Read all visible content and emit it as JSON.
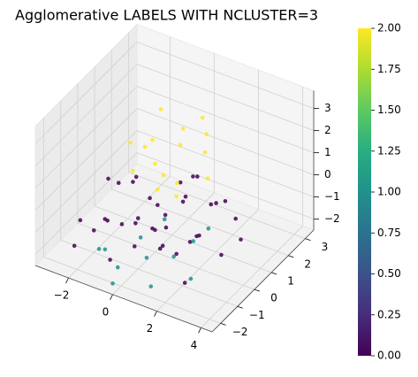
{
  "chart_data": {
    "type": "scatter3d",
    "title": "Agglomerative LABELS WITH NCLUSTER=3",
    "x": [
      -2,
      -1.5,
      -1,
      -0.5,
      0,
      0.5,
      1,
      1.5,
      2,
      2.5,
      -2.5,
      -1,
      0,
      0.5,
      1,
      -0.5,
      1.5,
      2,
      -1.5,
      0,
      3,
      -2,
      0.5,
      -1,
      1,
      -3,
      2.5,
      0,
      -0.5,
      1.2,
      -1.8,
      0.8,
      2.2,
      -0.3,
      1.8,
      3.5,
      -2.5,
      0.3,
      -1,
      0,
      1,
      2,
      1.5,
      0.5,
      2.5,
      -0.5,
      3,
      1.2,
      2.8,
      0,
      0,
      -0.5,
      0.5,
      1,
      -1,
      0,
      1.5,
      0.5,
      -0.5,
      1,
      0,
      2,
      -1.5,
      0.8,
      1.2,
      -0.3
    ],
    "y": [
      -1,
      0,
      1,
      -0.5,
      0,
      1,
      -1,
      0.5,
      0,
      -1.5,
      0.5,
      -1.5,
      1.5,
      -0.5,
      2,
      0.5,
      -1.5,
      1,
      -1,
      -1,
      0,
      1.5,
      0,
      0,
      0.5,
      -0.5,
      1.5,
      2.5,
      -2,
      -0.3,
      0.2,
      1.2,
      -0.8,
      1,
      1.8,
      0.5,
      -1.5,
      -1.6,
      -2,
      -2.2,
      -1.8,
      -1.5,
      -2.2,
      -1.5,
      -1,
      -2.3,
      -1.8,
      -1,
      -0.5,
      -2.5,
      0,
      0.5,
      1,
      0,
      0,
      1.5,
      1,
      -0.5,
      1,
      1.5,
      0.5,
      0.5,
      0.5,
      2,
      -0.3,
      -0.2
    ],
    "z": [
      -1.5,
      -1.8,
      -1.2,
      -1,
      -1.5,
      -0.8,
      -1.2,
      -1.6,
      -1,
      -1.8,
      -0.5,
      -0.3,
      -0.5,
      0.2,
      -1.5,
      -2,
      -0.5,
      -0.3,
      -0.8,
      -0.2,
      -1.5,
      -1,
      -1.2,
      0.3,
      0,
      -1.8,
      -1.2,
      -1,
      -1.5,
      -1.9,
      -0.2,
      0.3,
      -0.6,
      -1.7,
      -0.9,
      -1,
      -2,
      -0.9,
      -1.2,
      -1.5,
      -1,
      -0.8,
      -1.8,
      -0.5,
      -0.3,
      -0.8,
      -1.2,
      0.2,
      0,
      -2,
      1.5,
      2,
      2.5,
      1,
      0.8,
      1.2,
      1.8,
      0.9,
      3,
      2.8,
      0.6,
      1.2,
      1.5,
      1.6,
      0.7,
      2.3
    ],
    "values": [
      0,
      0,
      0,
      0,
      0,
      0,
      0,
      0,
      0,
      0,
      0,
      0,
      0,
      0,
      0,
      0,
      0,
      0,
      0,
      0,
      0,
      0,
      0,
      0,
      0,
      0,
      0,
      0,
      0,
      0,
      0,
      0,
      0,
      0,
      0,
      0,
      0,
      0,
      1,
      1,
      1,
      1,
      1,
      1,
      1,
      1,
      1,
      1,
      1,
      1,
      2,
      2,
      2,
      2,
      2,
      2,
      2,
      2,
      2,
      2,
      2,
      2,
      2,
      2,
      2,
      2
    ],
    "xlim": [
      -3.5,
      4.5
    ],
    "ylim": [
      -2.5,
      3.5
    ],
    "zlim": [
      -2.5,
      3.8
    ],
    "xticks": [
      {
        "value": -2,
        "label": "−2"
      },
      0,
      2,
      4
    ],
    "yticks": [
      {
        "value": -2,
        "label": "−2"
      },
      {
        "value": -1,
        "label": "−1"
      },
      0,
      1,
      2,
      3
    ],
    "zticks": [
      {
        "value": -2,
        "label": "−2"
      },
      {
        "value": -1,
        "label": "−1"
      },
      0,
      1,
      2,
      3
    ],
    "colormap": "viridis",
    "clim": [
      0,
      2
    ],
    "cticks": [
      {
        "value": 0,
        "label": "0.00"
      },
      {
        "value": 0.25,
        "label": "0.25"
      },
      {
        "value": 0.5,
        "label": "0.50"
      },
      {
        "value": 0.75,
        "label": "0.75"
      },
      {
        "value": 1,
        "label": "1.00"
      },
      {
        "value": 1.25,
        "label": "1.25"
      },
      {
        "value": 1.5,
        "label": "1.50"
      },
      {
        "value": 1.75,
        "label": "1.75"
      },
      {
        "value": 2,
        "label": "2.00"
      }
    ],
    "grid": true
  }
}
